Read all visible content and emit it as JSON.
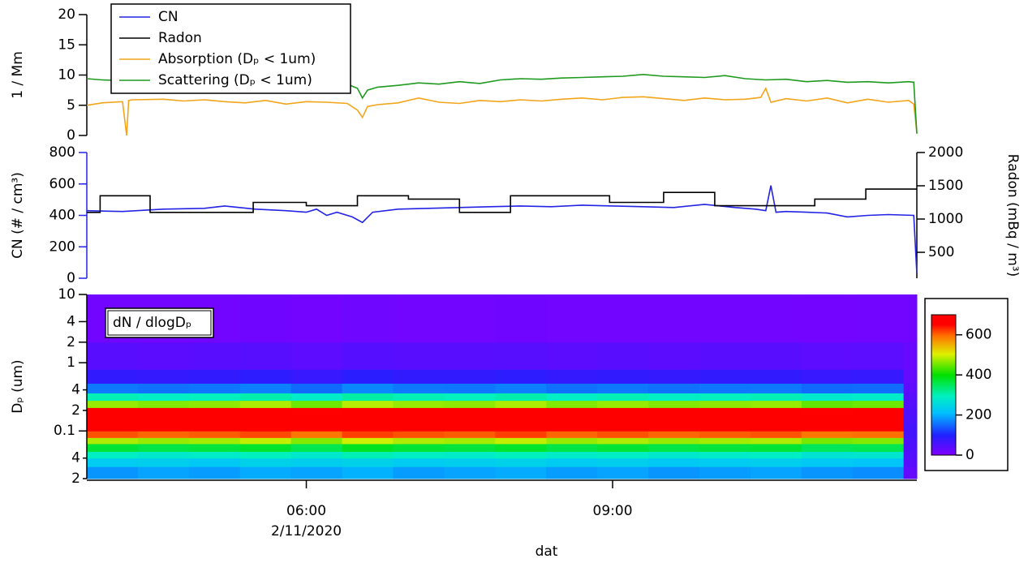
{
  "chart_data": [
    {
      "type": "line",
      "ylabel": "1 / Mm",
      "xlim": [
        3.85,
        11.98
      ],
      "ylim": [
        0,
        20
      ],
      "yticks": [
        0,
        5,
        10,
        15,
        20
      ],
      "legend": "upper left",
      "series": [
        {
          "name": "Absorption (Dₚ < 1um)",
          "color": "#f2a51a",
          "x": [
            3.85,
            4.0,
            4.2,
            4.24,
            4.26,
            4.3,
            4.6,
            4.8,
            5.0,
            5.2,
            5.4,
            5.6,
            5.8,
            6.0,
            6.2,
            6.4,
            6.5,
            6.55,
            6.6,
            6.7,
            6.9,
            7.1,
            7.3,
            7.5,
            7.7,
            7.9,
            8.1,
            8.3,
            8.5,
            8.7,
            8.9,
            9.1,
            9.3,
            9.5,
            9.7,
            9.9,
            10.1,
            10.3,
            10.45,
            10.5,
            10.55,
            10.7,
            10.9,
            11.1,
            11.3,
            11.5,
            11.7,
            11.9,
            11.95,
            11.98
          ],
          "values": [
            5.0,
            5.4,
            5.6,
            0.0,
            5.8,
            5.9,
            6.0,
            5.7,
            5.9,
            5.6,
            5.4,
            5.8,
            5.2,
            5.6,
            5.5,
            5.3,
            4.2,
            3.0,
            4.8,
            5.1,
            5.4,
            6.2,
            5.5,
            5.3,
            5.8,
            5.6,
            5.9,
            5.7,
            6.0,
            6.2,
            5.9,
            6.3,
            6.4,
            6.1,
            5.8,
            6.2,
            5.9,
            6.0,
            6.3,
            7.8,
            5.5,
            6.1,
            5.7,
            6.2,
            5.4,
            6.0,
            5.5,
            5.8,
            5.2,
            0.5
          ]
        },
        {
          "name": "Scattering (Dₚ < 1um)",
          "color": "#1f9a1f",
          "x": [
            3.85,
            4.0,
            4.2,
            4.4,
            4.6,
            4.8,
            5.0,
            5.2,
            5.4,
            5.6,
            5.8,
            6.0,
            6.2,
            6.4,
            6.5,
            6.55,
            6.6,
            6.7,
            6.9,
            7.1,
            7.3,
            7.5,
            7.7,
            7.9,
            8.1,
            8.3,
            8.5,
            8.7,
            8.9,
            9.1,
            9.3,
            9.5,
            9.7,
            9.9,
            10.1,
            10.3,
            10.5,
            10.7,
            10.9,
            11.1,
            11.3,
            11.5,
            11.7,
            11.9,
            11.95,
            11.98
          ],
          "values": [
            9.4,
            9.2,
            9.1,
            9.3,
            8.8,
            8.9,
            8.7,
            8.9,
            8.6,
            8.8,
            8.6,
            8.7,
            8.7,
            8.5,
            7.8,
            6.2,
            7.5,
            8.0,
            8.3,
            8.7,
            8.5,
            8.9,
            8.6,
            9.2,
            9.4,
            9.3,
            9.5,
            9.6,
            9.7,
            9.8,
            10.1,
            9.8,
            9.7,
            9.6,
            9.9,
            9.4,
            9.2,
            9.3,
            8.9,
            9.1,
            8.8,
            8.9,
            8.7,
            8.9,
            8.8,
            0.3
          ]
        }
      ]
    },
    {
      "type": "line",
      "ylabel": "CN (# / cm³)",
      "y2label": "Radon (mBq / m³)",
      "xlim": [
        3.85,
        11.98
      ],
      "ylim": [
        0,
        800
      ],
      "yticks": [
        0,
        200,
        400,
        600,
        800
      ],
      "y2lim": [
        110,
        2000
      ],
      "y2ticks": [
        500,
        1000,
        1500,
        2000
      ],
      "series": [
        {
          "name": "CN",
          "color": "#2323e6",
          "x": [
            3.85,
            4.2,
            4.6,
            5.0,
            5.2,
            5.5,
            5.8,
            6.0,
            6.1,
            6.2,
            6.3,
            6.45,
            6.55,
            6.65,
            6.9,
            7.2,
            7.5,
            7.8,
            8.1,
            8.4,
            8.7,
            9.0,
            9.3,
            9.6,
            9.9,
            10.2,
            10.4,
            10.5,
            10.55,
            10.6,
            10.7,
            10.9,
            11.1,
            11.3,
            11.5,
            11.7,
            11.95,
            11.98
          ],
          "values": [
            430,
            425,
            440,
            445,
            460,
            440,
            430,
            420,
            440,
            400,
            420,
            390,
            355,
            420,
            440,
            445,
            450,
            455,
            460,
            455,
            465,
            460,
            455,
            450,
            470,
            450,
            440,
            430,
            590,
            420,
            425,
            420,
            415,
            390,
            400,
            405,
            400,
            30
          ]
        },
        {
          "name": "Radon",
          "color": "#000000",
          "axis": "y2",
          "x": [
            3.85,
            3.98,
            3.98,
            4.47,
            4.47,
            5.48,
            5.48,
            6.0,
            6.0,
            6.5,
            6.5,
            7.0,
            7.0,
            7.5,
            7.5,
            8.0,
            8.0,
            8.97,
            8.97,
            9.5,
            9.5,
            10.0,
            10.0,
            10.98,
            10.98,
            11.48,
            11.48,
            11.98
          ],
          "values": [
            1100,
            1100,
            1350,
            1350,
            1100,
            1100,
            1250,
            1250,
            1200,
            1200,
            1350,
            1350,
            1300,
            1300,
            1100,
            1100,
            1350,
            1350,
            1250,
            1250,
            1400,
            1400,
            1200,
            1200,
            1300,
            1300,
            1450,
            1450
          ]
        }
      ]
    },
    {
      "type": "heatmap",
      "label": "dN / dlogDₚ",
      "ylabel": "Dₚ (um)",
      "xlabel": "dat",
      "date_label": "2/11/2020",
      "xlim": [
        3.85,
        11.98
      ],
      "xticks": [
        {
          "value": 6,
          "label": "06:00"
        },
        {
          "value": 9,
          "label": "09:00"
        }
      ],
      "ylim": [
        0.02,
        10
      ],
      "log_y": true,
      "yticks": [
        {
          "value": 0.02,
          "label": "2"
        },
        {
          "value": 0.04,
          "label": "4"
        },
        0.1,
        {
          "value": 0.2,
          "label": "2"
        },
        {
          "value": 0.4,
          "label": "4"
        },
        1,
        2,
        4,
        10
      ],
      "zlim": [
        0,
        700
      ],
      "zticks": [
        0,
        200,
        400,
        600
      ],
      "x_edges": [
        3.85,
        4.35,
        4.85,
        5.35,
        5.85,
        6.35,
        6.85,
        7.35,
        7.85,
        8.35,
        8.85,
        9.35,
        9.85,
        10.35,
        10.85,
        11.35,
        11.85,
        11.98
      ],
      "y_edges": [
        0.02,
        0.03,
        0.04,
        0.05,
        0.065,
        0.08,
        0.1,
        0.13,
        0.17,
        0.22,
        0.28,
        0.36,
        0.5,
        0.8,
        2,
        10
      ],
      "z": [
        [
          180,
          190,
          185,
          195,
          190,
          200,
          185,
          190,
          195,
          185,
          190,
          180,
          185,
          190,
          180,
          175,
          30
        ],
        [
          230,
          235,
          225,
          240,
          235,
          240,
          230,
          235,
          240,
          230,
          235,
          225,
          230,
          235,
          225,
          220,
          40
        ],
        [
          290,
          280,
          285,
          295,
          280,
          300,
          290,
          285,
          295,
          285,
          290,
          280,
          285,
          290,
          270,
          275,
          45
        ],
        [
          370,
          360,
          365,
          375,
          355,
          380,
          370,
          365,
          375,
          360,
          370,
          360,
          365,
          370,
          350,
          355,
          50
        ],
        [
          480,
          470,
          475,
          490,
          460,
          495,
          480,
          475,
          490,
          470,
          480,
          470,
          475,
          480,
          455,
          460,
          55
        ],
        [
          610,
          600,
          605,
          615,
          590,
          620,
          610,
          605,
          620,
          600,
          610,
          600,
          605,
          610,
          590,
          595,
          60
        ],
        [
          690,
          685,
          690,
          700,
          680,
          700,
          695,
          690,
          700,
          690,
          695,
          690,
          690,
          695,
          680,
          685,
          60
        ],
        [
          700,
          700,
          700,
          700,
          695,
          700,
          700,
          700,
          700,
          700,
          700,
          700,
          700,
          700,
          695,
          700,
          55
        ],
        [
          660,
          655,
          660,
          670,
          650,
          675,
          665,
          660,
          670,
          660,
          665,
          655,
          660,
          665,
          650,
          655,
          50
        ],
        [
          470,
          460,
          465,
          480,
          450,
          485,
          470,
          465,
          480,
          460,
          470,
          460,
          465,
          470,
          445,
          450,
          45
        ],
        [
          300,
          290,
          295,
          305,
          285,
          310,
          300,
          295,
          305,
          290,
          300,
          290,
          295,
          300,
          280,
          285,
          40
        ],
        [
          160,
          155,
          158,
          165,
          150,
          170,
          160,
          158,
          165,
          155,
          160,
          155,
          158,
          160,
          150,
          152,
          35
        ],
        [
          80,
          78,
          80,
          85,
          75,
          88,
          80,
          80,
          85,
          78,
          80,
          78,
          80,
          80,
          75,
          76,
          30
        ],
        [
          40,
          38,
          40,
          42,
          36,
          44,
          40,
          40,
          42,
          38,
          40,
          38,
          40,
          40,
          36,
          37,
          25
        ],
        [
          15,
          14,
          15,
          16,
          13,
          17,
          15,
          15,
          16,
          14,
          15,
          14,
          15,
          15,
          13,
          14,
          15
        ]
      ]
    }
  ]
}
